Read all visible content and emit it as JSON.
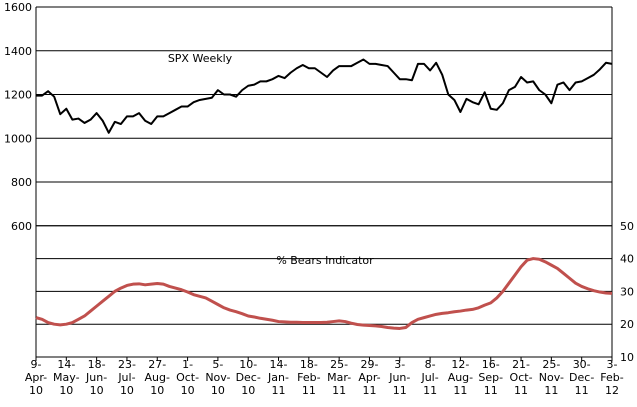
{
  "chart_data": {
    "type": "line",
    "annotations": [
      "SPX Weekly",
      "% Bears Indicator"
    ],
    "categories": [
      "9-Apr-10",
      null,
      null,
      null,
      null,
      "14-May-10",
      null,
      null,
      null,
      null,
      "18-Jun-10",
      null,
      null,
      null,
      null,
      "23-Jul-10",
      null,
      null,
      null,
      null,
      "27-Aug-10",
      null,
      null,
      null,
      null,
      "1-Oct-10",
      null,
      null,
      null,
      null,
      "5-Nov-10",
      null,
      null,
      null,
      null,
      "10-Dec-10",
      null,
      null,
      null,
      null,
      "14-Jan-11",
      null,
      null,
      null,
      null,
      "18-Feb-11",
      null,
      null,
      null,
      null,
      "25-Mar-11",
      null,
      null,
      null,
      null,
      "29-Apr-11",
      null,
      null,
      null,
      null,
      "3-Jun-11",
      null,
      null,
      null,
      null,
      "8-Jul-11",
      null,
      null,
      null,
      null,
      "12-Aug-11",
      null,
      null,
      null,
      null,
      "16-Sep-11",
      null,
      null,
      null,
      null,
      "21-Oct-11",
      null,
      null,
      null,
      null,
      "25-Nov-11",
      null,
      null,
      null,
      null,
      "30-Dec-11",
      null,
      null,
      null,
      null,
      "3-Feb-12"
    ],
    "series": [
      {
        "color": "#000000",
        "values": [
          1195,
          1195,
          1215,
          1190,
          1110,
          1135,
          1085,
          1090,
          1070,
          1085,
          1115,
          1080,
          1025,
          1075,
          1065,
          1100,
          1100,
          1115,
          1080,
          1065,
          1100,
          1100,
          1115,
          1130,
          1145,
          1145,
          1165,
          1175,
          1180,
          1185,
          1220,
          1200,
          1200,
          1190,
          1220,
          1240,
          1245,
          1260,
          1260,
          1270,
          1285,
          1275,
          1300,
          1320,
          1335,
          1320,
          1320,
          1300,
          1280,
          1310,
          1330,
          1330,
          1330,
          1345,
          1360,
          1340,
          1340,
          1335,
          1330,
          1300,
          1270,
          1270,
          1265,
          1340,
          1340,
          1310,
          1345,
          1290,
          1200,
          1175,
          1120,
          1180,
          1165,
          1155,
          1210,
          1135,
          1130,
          1160,
          1220,
          1235,
          1280,
          1255,
          1260,
          1220,
          1200,
          1160,
          1245,
          1255,
          1220,
          1255,
          1260,
          1275,
          1290,
          1315,
          1345,
          1340
        ]
      },
      {
        "color": "#c0504d",
        "axis": "y2",
        "values": [
          22,
          21.5,
          20.5,
          20,
          19.8,
          20,
          20.5,
          21.5,
          22.5,
          24,
          25.5,
          27,
          28.5,
          30,
          31,
          31.8,
          32.2,
          32.3,
          32,
          32.2,
          32.4,
          32.2,
          31.5,
          31,
          30.5,
          29.8,
          29,
          28.5,
          28,
          27,
          26,
          25,
          24.3,
          23.8,
          23.2,
          22.5,
          22.2,
          21.8,
          21.5,
          21.2,
          20.8,
          20.7,
          20.6,
          20.6,
          20.5,
          20.5,
          20.5,
          20.5,
          20.6,
          20.8,
          21,
          20.8,
          20.3,
          19.9,
          19.7,
          19.6,
          19.5,
          19.3,
          19,
          18.8,
          18.7,
          19,
          20.5,
          21.5,
          22,
          22.5,
          23,
          23.3,
          23.5,
          23.8,
          24,
          24.3,
          24.5,
          25,
          25.8,
          26.5,
          28,
          30,
          32.5,
          35,
          37.5,
          39.5,
          40,
          39.8,
          39,
          38,
          37,
          35.5,
          34,
          32.5,
          31.5,
          30.8,
          30.2,
          29.8,
          29.5,
          29.4
        ]
      }
    ],
    "ylim": [
      0,
      1600
    ],
    "yticks": [
      600,
      800,
      1000,
      1200,
      1400,
      1600
    ],
    "y2lim": [
      10,
      50
    ],
    "y2ticks": [
      10,
      20,
      30,
      40,
      50
    ],
    "grid": true
  }
}
